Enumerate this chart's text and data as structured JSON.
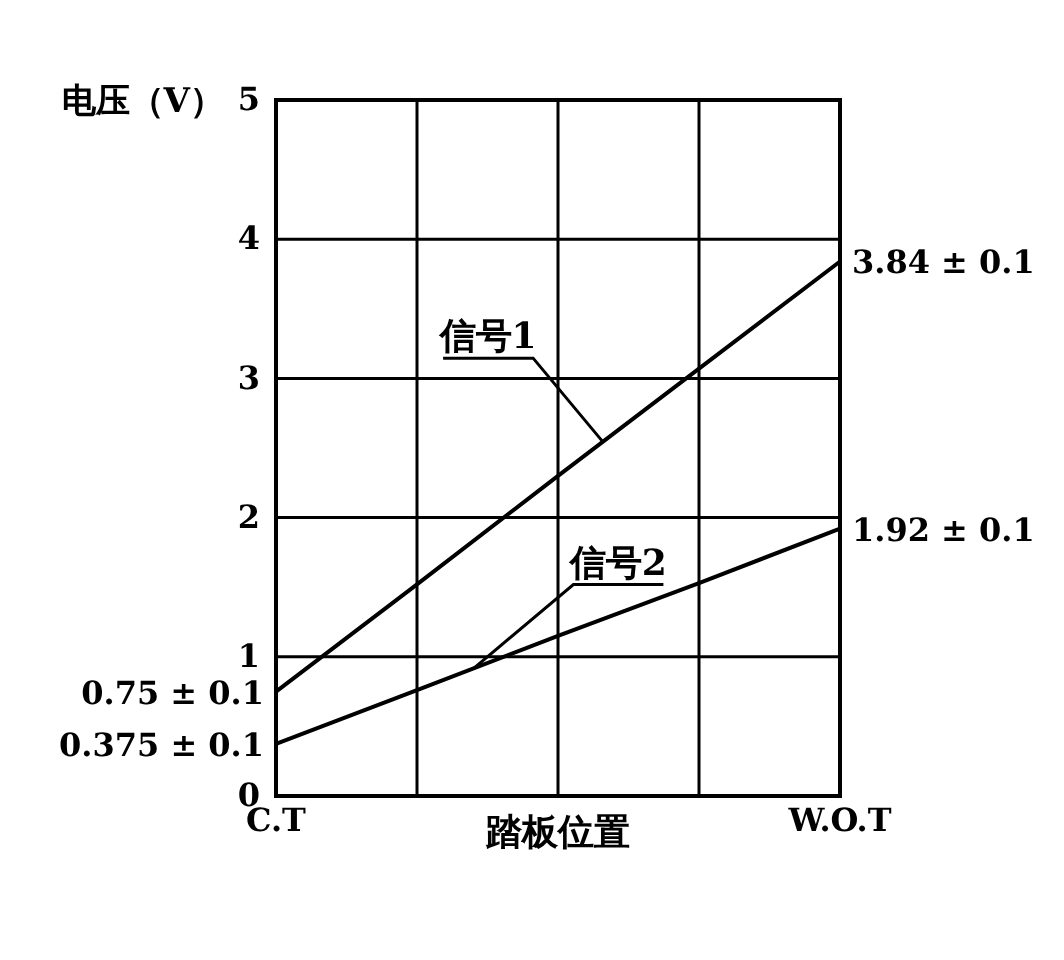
{
  "chart_data": {
    "type": "line",
    "ylabel": "电压（V）",
    "xlabel": "踏板位置",
    "categories": [
      "C.T",
      null,
      null,
      null,
      "W.O.T"
    ],
    "series": [
      {
        "name": "信号1",
        "color": "#000000",
        "values": [
          0.75,
          1.52,
          2.3,
          3.07,
          3.84
        ]
      },
      {
        "name": "信号2",
        "color": "#000000",
        "values": [
          0.375,
          0.76,
          1.15,
          1.53,
          1.92
        ]
      }
    ],
    "ylim": [
      0,
      5
    ],
    "yticks": [
      0,
      1,
      2,
      3,
      4,
      5
    ],
    "grid": true,
    "marker": "none",
    "line_style": "solid",
    "annotations": [
      {
        "text": "3.84 ± 0.1",
        "x": "W.O.T",
        "y": 3.84
      },
      {
        "text": "1.92 ± 0.1",
        "x": "W.O.T",
        "y": 1.92
      },
      {
        "text": "0.75 ± 0.1",
        "x": "C.T",
        "y": 0.75
      },
      {
        "text": "0.375 ± 0.1",
        "x": "C.T",
        "y": 0.375
      }
    ]
  }
}
